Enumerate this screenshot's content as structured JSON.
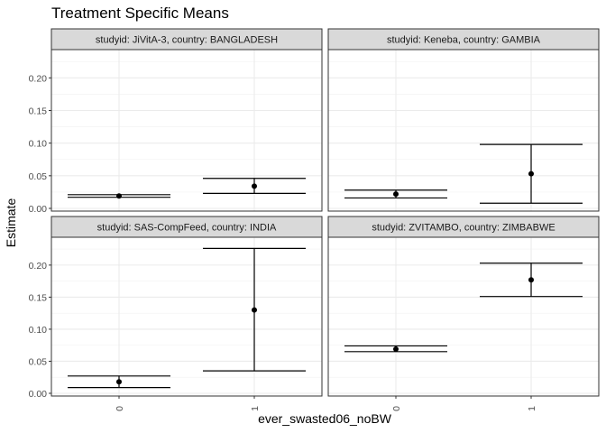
{
  "chart_data": {
    "type": "errorbar",
    "title": "Treatment Specific Means",
    "xlabel": "ever_swasted06_noBW",
    "ylabel": "Estimate",
    "categories": [
      "0",
      "1"
    ],
    "yticks": [
      "0.00",
      "0.05",
      "0.10",
      "0.15",
      "0.20"
    ],
    "facet_rows": [
      {
        "ylim": [
          0,
          0.235
        ],
        "ytick_values": [
          0,
          0.05,
          0.1,
          0.15,
          0.2
        ]
      },
      {
        "ylim": [
          0,
          0.235
        ],
        "ytick_values": [
          0,
          0.05,
          0.1,
          0.15,
          0.2
        ]
      }
    ],
    "grid": true,
    "legend": "none",
    "panels": [
      {
        "label": "studyid: JiVitA-3, country: BANGLADESH",
        "points": [
          {
            "x": "0",
            "estimate": 0.019,
            "lower": 0.017,
            "upper": 0.021
          },
          {
            "x": "1",
            "estimate": 0.034,
            "lower": 0.023,
            "upper": 0.046
          }
        ]
      },
      {
        "label": "studyid: Keneba, country: GAMBIA",
        "points": [
          {
            "x": "0",
            "estimate": 0.022,
            "lower": 0.016,
            "upper": 0.028
          },
          {
            "x": "1",
            "estimate": 0.053,
            "lower": 0.008,
            "upper": 0.098
          }
        ]
      },
      {
        "label": "studyid: SAS-CompFeed, country: INDIA",
        "points": [
          {
            "x": "0",
            "estimate": 0.018,
            "lower": 0.009,
            "upper": 0.027
          },
          {
            "x": "1",
            "estimate": 0.13,
            "lower": 0.035,
            "upper": 0.226
          }
        ]
      },
      {
        "label": "studyid: ZVITAMBO, country: ZIMBABWE",
        "points": [
          {
            "x": "0",
            "estimate": 0.069,
            "lower": 0.065,
            "upper": 0.074
          },
          {
            "x": "1",
            "estimate": 0.177,
            "lower": 0.151,
            "upper": 0.203
          }
        ]
      }
    ]
  }
}
